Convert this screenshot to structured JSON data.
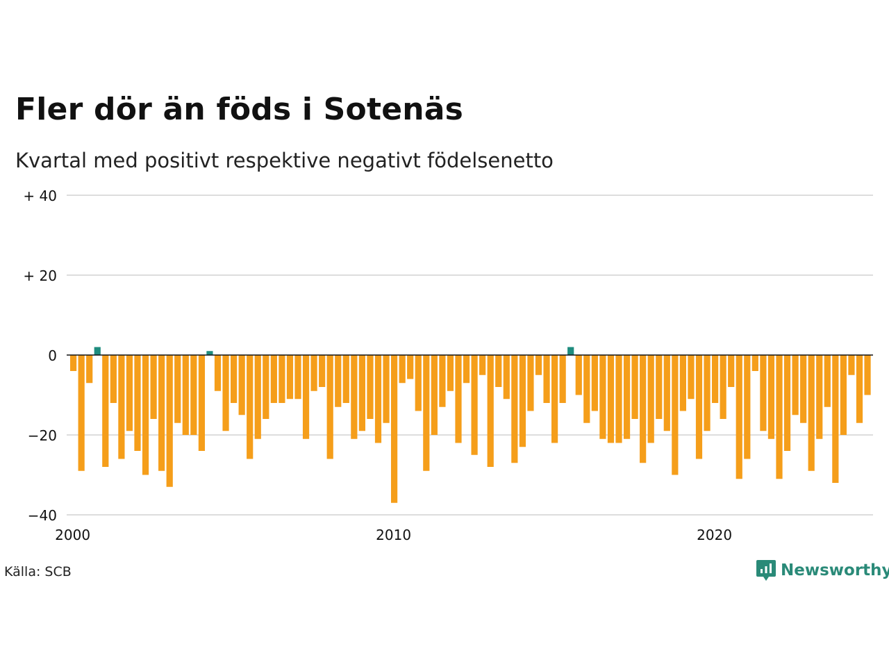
{
  "title": "Fler dör än föds i Sotenäs",
  "subtitle": "Kvartal med positivt respektive negativt födelsenetto",
  "source": "Källa: SCB",
  "brand": {
    "name": "Newsworthy",
    "icon": "newsworthy-logo-icon",
    "color": "#2a8a78"
  },
  "colors": {
    "positive": "#1e8c7e",
    "negative": "#f59e1a",
    "grid": "#dddddd",
    "zero_line": "#111111"
  },
  "chart_data": {
    "type": "bar",
    "x_start": "2000 Q1",
    "frequency": "quarterly",
    "x_ticks": [
      {
        "label": "2000",
        "index": 0
      },
      {
        "label": "2010",
        "index": 40
      },
      {
        "label": "2020",
        "index": 80
      }
    ],
    "y_ticks": [
      {
        "value": 40,
        "label": "+ 40"
      },
      {
        "value": 20,
        "label": "+ 20"
      },
      {
        "value": 0,
        "label": "0"
      },
      {
        "value": -20,
        "label": "−20"
      },
      {
        "value": -40,
        "label": "−40"
      }
    ],
    "ylim": [
      -40,
      40
    ],
    "grid": true,
    "series": [
      {
        "values": [
          -4,
          -29,
          -7,
          2,
          -28,
          -12,
          -26,
          -19,
          -24,
          -30,
          -16,
          -29,
          -33,
          -17,
          -20,
          -20,
          -24,
          1,
          -9,
          -19,
          -12,
          -15,
          -26,
          -21,
          -16,
          -12,
          -12,
          -11,
          -11,
          -21,
          -9,
          -8,
          -26,
          -13,
          -12,
          -21,
          -19,
          -16,
          -22,
          -17,
          -37,
          -7,
          -6,
          -14,
          -29,
          -20,
          -13,
          -9,
          -22,
          -7,
          -25,
          -5,
          -28,
          -8,
          -11,
          -27,
          -23,
          -14,
          -5,
          -12,
          -22,
          -12,
          2,
          -10,
          -17,
          -14,
          -21,
          -22,
          -22,
          -21,
          -16,
          -27,
          -22,
          -16,
          -19,
          -30,
          -14,
          -11,
          -26,
          -19,
          -12,
          -16,
          -8,
          -31,
          -26,
          -4,
          -19,
          -21,
          -31,
          -24,
          -15,
          -17,
          -29,
          -21,
          -13,
          -32,
          -20,
          -5,
          -17,
          -10
        ]
      }
    ]
  }
}
